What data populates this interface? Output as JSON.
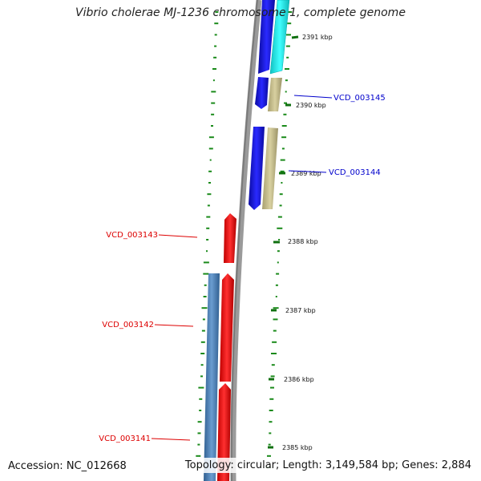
{
  "title": "Vibrio cholerae MJ-1236 chromosome 1, complete genome",
  "footer": {
    "accession": "Accession: NC_012668",
    "summary": "Topology: circular; Length: 3,149,584 bp; Genes: 2,884"
  },
  "ticks": [
    "2391 kbp",
    "2390 kbp",
    "2389 kbp",
    "2388 kbp",
    "2387 kbp",
    "2386 kbp",
    "2385 kbp"
  ],
  "gene_labels": [
    {
      "text": "VCD_003145",
      "strand": "forward"
    },
    {
      "text": "VCD_003144",
      "strand": "forward"
    },
    {
      "text": "VCD_003143",
      "strand": "reverse"
    },
    {
      "text": "VCD_003142",
      "strand": "reverse"
    },
    {
      "text": "VCD_003141",
      "strand": "reverse"
    }
  ],
  "colors": {
    "backbone": "#808080",
    "forward_cds": "#1010e0",
    "reverse_cds": "#ee1111",
    "gene_feature_khaki": "#c8c08a",
    "gene_feature_cyan": "#22eeee",
    "gene_feature_steelblue": "#4a7fb0",
    "gc_dots": "#1a8a1a",
    "forward_label": "#0000cc",
    "reverse_label": "#dd0000"
  }
}
